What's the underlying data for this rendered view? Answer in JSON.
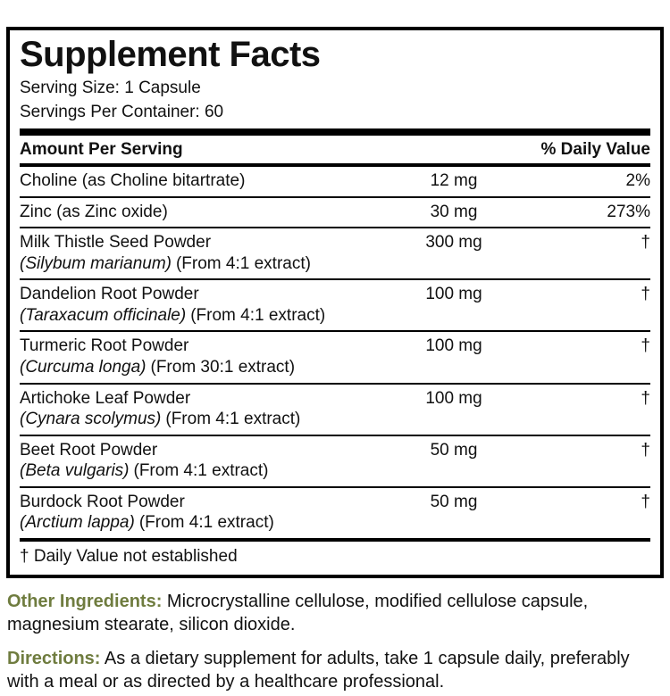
{
  "panel": {
    "title": "Supplement Facts",
    "serving_size": "Serving Size: 1 Capsule",
    "servings_per_container": "Servings Per Container: 60",
    "columns": {
      "amount": "Amount Per Serving",
      "daily_value": "% Daily Value"
    },
    "rows": [
      {
        "name": "Choline (as Choline bitartrate)",
        "latin": "",
        "extract": "",
        "amount": "12 mg",
        "dv": "2%"
      },
      {
        "name": "Zinc (as Zinc oxide)",
        "latin": "",
        "extract": "",
        "amount": "30 mg",
        "dv": "273%"
      },
      {
        "name": "Milk Thistle Seed Powder",
        "latin": "(Silybum marianum)",
        "extract": "(From 4:1 extract)",
        "amount": "300 mg",
        "dv": "†"
      },
      {
        "name": "Dandelion Root Powder",
        "latin": "(Taraxacum officinale)",
        "extract": "(From 4:1 extract)",
        "amount": "100 mg",
        "dv": "†"
      },
      {
        "name": "Turmeric Root Powder",
        "latin": "(Curcuma longa)",
        "extract": "(From 30:1 extract)",
        "amount": "100 mg",
        "dv": "†"
      },
      {
        "name": "Artichoke Leaf Powder",
        "latin": "(Cynara scolymus)",
        "extract": "(From 4:1 extract)",
        "amount": "100 mg",
        "dv": "†"
      },
      {
        "name": "Beet Root Powder",
        "latin": "(Beta vulgaris)",
        "extract": "(From 4:1 extract)",
        "amount": "50 mg",
        "dv": "†"
      },
      {
        "name": "Burdock Root Powder",
        "latin": "(Arctium lappa)",
        "extract": "(From 4:1 extract)",
        "amount": "50 mg",
        "dv": "†"
      }
    ],
    "footnote": "† Daily Value not established"
  },
  "other_ingredients": {
    "label": "Other Ingredients:",
    "text": " Microcrystalline cellulose, modified cellulose capsule, magnesium stearate, silicon dioxide."
  },
  "directions": {
    "label": "Directions:",
    "text": " As a dietary supplement for adults, take 1 capsule daily, preferably with a meal or as directed by a healthcare professional."
  },
  "colors": {
    "accent_green": "#6f7c3f",
    "rule_black": "#000000"
  }
}
